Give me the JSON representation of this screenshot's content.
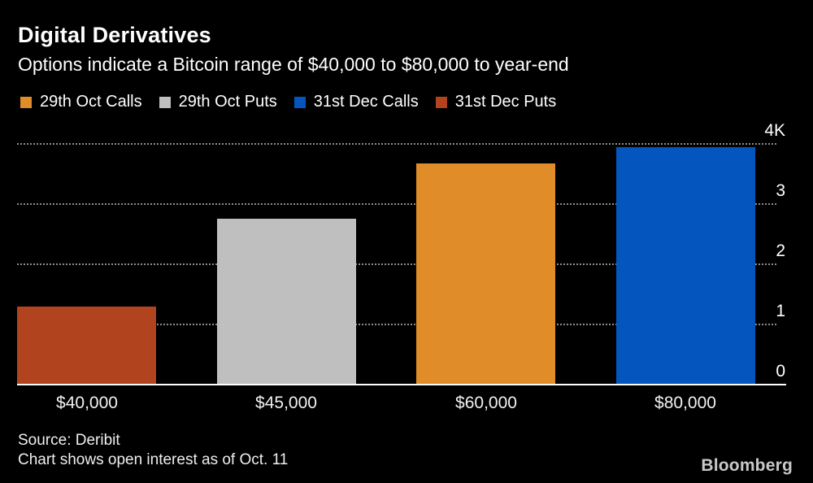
{
  "header": {
    "title": "Digital Derivatives",
    "subtitle": "Options indicate a Bitcoin range of $40,000 to $80,000 to year-end"
  },
  "legend": [
    {
      "label": "29th Oct Calls",
      "color": "#E08C28"
    },
    {
      "label": "29th Oct Puts",
      "color": "#BFBFBF"
    },
    {
      "label": "31st Dec Calls",
      "color": "#0456BE"
    },
    {
      "label": "31st Dec Puts",
      "color": "#B1431E"
    }
  ],
  "chart_data": {
    "type": "bar",
    "categories": [
      "$40,000",
      "$45,000",
      "$60,000",
      "$80,000"
    ],
    "values": [
      1.3,
      2.75,
      3.67,
      3.95
    ],
    "series_for_each_bar": [
      "31st Dec Puts",
      "29th Oct Puts",
      "29th Oct Calls",
      "31st Dec Calls"
    ],
    "bar_colors": [
      "#B1431E",
      "#BFBFBF",
      "#E08C28",
      "#0456BE"
    ],
    "title": "Digital Derivatives",
    "subtitle": "Options indicate a Bitcoin range of $40,000 to $80,000 to year-end",
    "xlabel": "",
    "ylabel": "",
    "ylim": [
      0,
      4
    ],
    "yticks": [
      {
        "value": 0,
        "label": "0"
      },
      {
        "value": 1,
        "label": "1"
      },
      {
        "value": 2,
        "label": "2"
      },
      {
        "value": 3,
        "label": "3"
      },
      {
        "value": 4,
        "label": "4K"
      }
    ],
    "grid": "horizontal dotted",
    "legend_position": "top-left",
    "colors": {
      "background": "#000000",
      "gridline": "#8C8C8C",
      "axis_line": "#FFFFFF",
      "text": "#FFFFFF"
    }
  },
  "footer": {
    "source": "Source: Deribit",
    "note": "Chart shows open interest as of Oct. 11",
    "brand": "Bloomberg"
  }
}
